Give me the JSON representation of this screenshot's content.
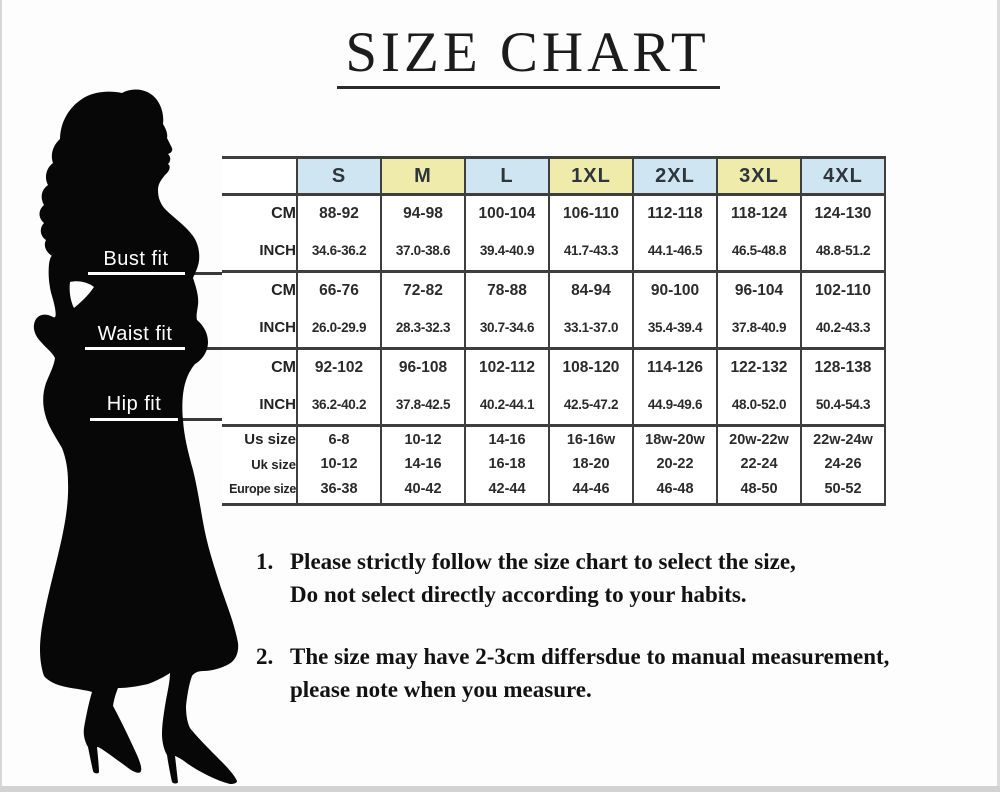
{
  "title": "SIZE CHART",
  "chart_data": {
    "type": "table",
    "title": "SIZE CHART",
    "columns": [
      "S",
      "M",
      "L",
      "1XL",
      "2XL",
      "3XL",
      "4XL"
    ],
    "header_fills": [
      "#cfe6f2",
      "#efebab",
      "#cfe6f2",
      "#efebab",
      "#cfe6f2",
      "#efebab",
      "#cfe6f2"
    ],
    "sections": [
      {
        "figure_label": "Bust fit",
        "rows": [
          {
            "kind": "cm",
            "label": "CM",
            "values": [
              "88-92",
              "94-98",
              "100-104",
              "106-110",
              "112-118",
              "118-124",
              "124-130"
            ]
          },
          {
            "kind": "inch",
            "label": "INCH",
            "values": [
              "34.6-36.2",
              "37.0-38.6",
              "39.4-40.9",
              "41.7-43.3",
              "44.1-46.5",
              "46.5-48.8",
              "48.8-51.2"
            ]
          }
        ]
      },
      {
        "figure_label": "Waist fit",
        "rows": [
          {
            "kind": "cm",
            "label": "CM",
            "values": [
              "66-76",
              "72-82",
              "78-88",
              "84-94",
              "90-100",
              "96-104",
              "102-110"
            ]
          },
          {
            "kind": "inch",
            "label": "INCH",
            "values": [
              "26.0-29.9",
              "28.3-32.3",
              "30.7-34.6",
              "33.1-37.0",
              "35.4-39.4",
              "37.8-40.9",
              "40.2-43.3"
            ]
          }
        ]
      },
      {
        "figure_label": "Hip fit",
        "rows": [
          {
            "kind": "cm",
            "label": "CM",
            "values": [
              "92-102",
              "96-108",
              "102-112",
              "108-120",
              "114-126",
              "122-132",
              "128-138"
            ]
          },
          {
            "kind": "inch",
            "label": "INCH",
            "values": [
              "36.2-40.2",
              "37.8-42.5",
              "40.2-44.1",
              "42.5-47.2",
              "44.9-49.6",
              "48.0-52.0",
              "50.4-54.3"
            ]
          }
        ]
      },
      {
        "figure_label": "",
        "rows": [
          {
            "kind": "us",
            "label": "Us size",
            "values": [
              "6-8",
              "10-12",
              "14-16",
              "16-16w",
              "18w-20w",
              "20w-22w",
              "22w-24w"
            ]
          },
          {
            "kind": "uk",
            "label": "Uk size",
            "values": [
              "10-12",
              "14-16",
              "16-18",
              "18-20",
              "20-22",
              "22-24",
              "24-26"
            ]
          },
          {
            "kind": "eu",
            "label": "Europe size",
            "values": [
              "36-38",
              "40-42",
              "42-44",
              "44-46",
              "46-48",
              "48-50",
              "50-52"
            ]
          }
        ]
      }
    ]
  },
  "notes": [
    {
      "number": "1.",
      "lines": [
        "Please strictly follow the size chart to select the size,",
        "Do not select directly according to your habits."
      ]
    },
    {
      "number": "2.",
      "lines": [
        "The size may have 2-3cm differsdue to manual measurement,",
        "please note when you measure."
      ]
    }
  ],
  "colors": {
    "header_blue": "#cfe6f2",
    "header_yellow": "#efebab",
    "border": "#3e3e3e",
    "silhouette": "#070707"
  }
}
